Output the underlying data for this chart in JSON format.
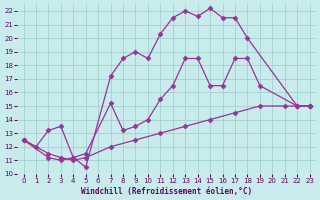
{
  "xlabel": "Windchill (Refroidissement éolien,°C)",
  "xlim": [
    -0.5,
    23.5
  ],
  "ylim": [
    10,
    22.5
  ],
  "xticks": [
    0,
    1,
    2,
    3,
    4,
    5,
    6,
    7,
    8,
    9,
    10,
    11,
    12,
    13,
    14,
    15,
    16,
    17,
    18,
    19,
    20,
    21,
    22,
    23
  ],
  "yticks": [
    10,
    11,
    12,
    13,
    14,
    15,
    16,
    17,
    18,
    19,
    20,
    21,
    22
  ],
  "bg_color": "#c8ecec",
  "grid_color": "#a8d4d4",
  "line_color": "#993399",
  "lines": [
    {
      "x": [
        0,
        1,
        2,
        3,
        4,
        5,
        7,
        8,
        9,
        10,
        11,
        12,
        13,
        14,
        15,
        16,
        17,
        18,
        22,
        23
      ],
      "y": [
        12.5,
        12.0,
        13.2,
        13.5,
        11.2,
        10.5,
        17.2,
        18.5,
        19.0,
        18.5,
        20.3,
        21.5,
        22.0,
        21.6,
        22.2,
        21.5,
        21.5,
        20.0,
        15.0,
        15.0
      ]
    },
    {
      "x": [
        0,
        2,
        3,
        4,
        5,
        7,
        8,
        9,
        10,
        11,
        12,
        13,
        14,
        15,
        16,
        17,
        18,
        19,
        22,
        23
      ],
      "y": [
        12.5,
        11.2,
        11.0,
        11.2,
        11.5,
        15.2,
        13.2,
        13.5,
        14.0,
        15.5,
        16.5,
        18.5,
        18.5,
        16.5,
        16.5,
        18.5,
        18.5,
        16.5,
        15.0,
        15.0
      ]
    },
    {
      "x": [
        0,
        2,
        3,
        4,
        5,
        7,
        9,
        11,
        13,
        15,
        17,
        19,
        21,
        22,
        23
      ],
      "y": [
        12.5,
        11.5,
        11.2,
        11.0,
        11.2,
        12.0,
        12.5,
        13.0,
        13.5,
        14.0,
        14.5,
        15.0,
        15.0,
        15.0,
        15.0
      ]
    }
  ],
  "marker": "D",
  "markersize": 2.5,
  "linewidth": 0.9
}
